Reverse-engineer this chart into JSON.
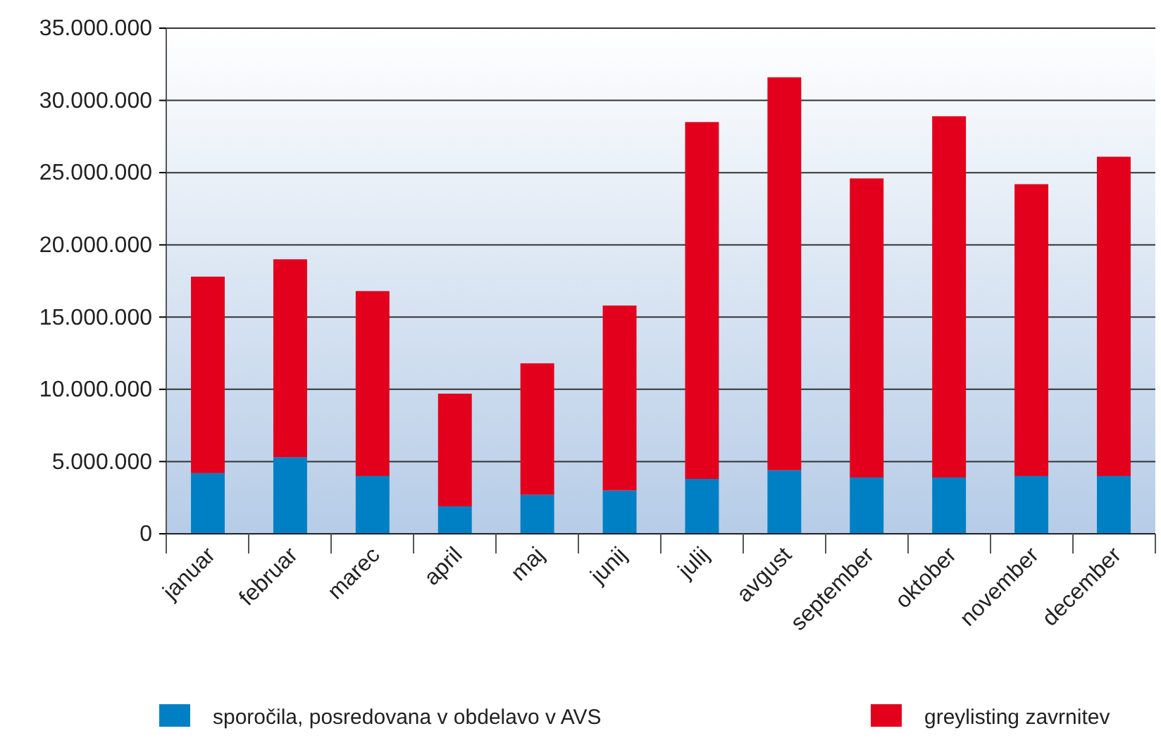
{
  "chart_data": {
    "type": "bar",
    "stacked": true,
    "categories": [
      "januar",
      "februar",
      "marec",
      "april",
      "maj",
      "junij",
      "julij",
      "avgust",
      "september",
      "oktober",
      "november",
      "december"
    ],
    "series": [
      {
        "name": "sporočila, posredovana v obdelavo v AVS",
        "color": "#0080c4",
        "values": [
          4200000,
          5300000,
          4000000,
          1900000,
          2700000,
          3000000,
          3800000,
          4400000,
          3900000,
          3900000,
          4000000,
          4000000
        ]
      },
      {
        "name": "greylisting zavrnitev",
        "color": "#e2001d",
        "values": [
          13600000,
          13700000,
          12800000,
          7800000,
          9100000,
          12800000,
          24700000,
          27200000,
          20700000,
          25000000,
          20200000,
          22100000
        ]
      }
    ],
    "ylim": [
      0,
      35000000
    ],
    "yticks": [
      {
        "value": 0,
        "label": "0"
      },
      {
        "value": 5000000,
        "label": "5.000.000"
      },
      {
        "value": 10000000,
        "label": "10.000.000"
      },
      {
        "value": 15000000,
        "label": "15.000.000"
      },
      {
        "value": 20000000,
        "label": "20.000.000"
      },
      {
        "value": 25000000,
        "label": "25.000.000"
      },
      {
        "value": 30000000,
        "label": "30.000.000"
      },
      {
        "value": 35000000,
        "label": "35.000.000"
      }
    ],
    "grid": "y",
    "legend": "bottom"
  }
}
